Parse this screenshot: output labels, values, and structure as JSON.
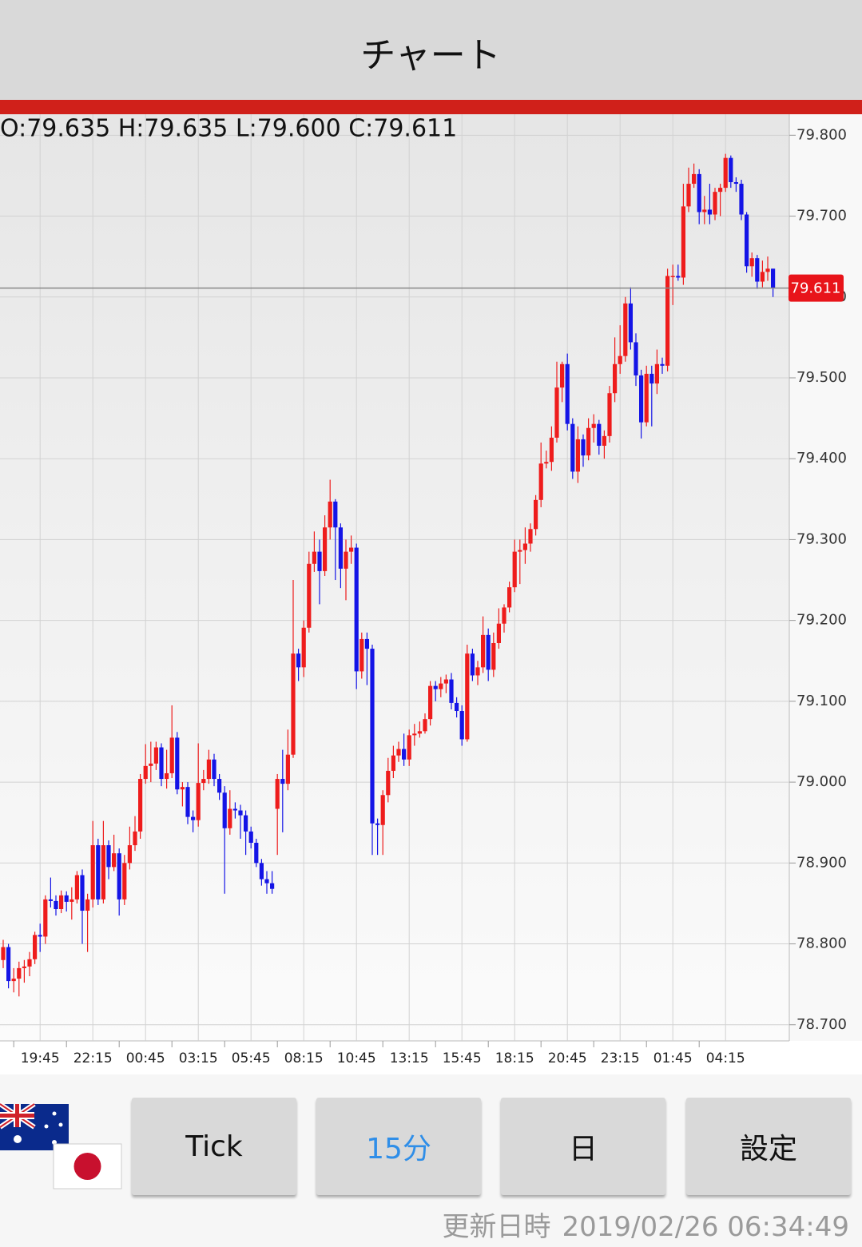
{
  "header": {
    "title": "チャート"
  },
  "chart_data": {
    "type": "candlestick",
    "ohlc_header": "O:79.635 H:79.635 L:79.600 C:79.611",
    "categories": [
      null,
      null,
      null,
      null,
      null,
      null,
      null,
      "19:45",
      null,
      null,
      null,
      null,
      null,
      null,
      null,
      null,
      null,
      "22:15",
      null,
      null,
      null,
      null,
      null,
      null,
      null,
      null,
      null,
      "00:45",
      null,
      null,
      null,
      null,
      null,
      null,
      null,
      null,
      null,
      "03:15",
      null,
      null,
      null,
      null,
      null,
      null,
      null,
      null,
      null,
      "05:45",
      null,
      null,
      null,
      null,
      null,
      null,
      null,
      null,
      null,
      "08:15",
      null,
      null,
      null,
      null,
      null,
      null,
      null,
      null,
      null,
      "10:45",
      null,
      null,
      null,
      null,
      null,
      null,
      null,
      null,
      null,
      "13:15",
      null,
      null,
      null,
      null,
      null,
      null,
      null,
      null,
      null,
      "15:45",
      null,
      null,
      null,
      null,
      null,
      null,
      null,
      null,
      null,
      "18:15",
      null,
      null,
      null,
      null,
      null,
      null,
      null,
      null,
      null,
      "20:45",
      null,
      null,
      null,
      null,
      null,
      null,
      null,
      null,
      null,
      "23:15",
      null,
      null,
      null,
      null,
      null,
      null,
      null,
      null,
      null,
      "01:45",
      null,
      null,
      null,
      null,
      null,
      null,
      null,
      null,
      null,
      "04:15",
      null,
      null,
      null,
      null,
      null,
      null,
      null,
      null,
      null
    ],
    "open": [
      78.78,
      78.796,
      78.754,
      78.757,
      78.77,
      78.772,
      78.781,
      78.811,
      78.809,
      78.855,
      78.853,
      78.843,
      78.86,
      78.852,
      78.855,
      78.885,
      78.841,
      78.855,
      78.922,
      78.855,
      78.922,
      78.895,
      78.912,
      78.855,
      78.9,
      78.922,
      78.939,
      79.004,
      79.02,
      79.023,
      79.043,
      79.004,
      79.011,
      79.055,
      78.991,
      78.994,
      78.957,
      78.953,
      78.999,
      79.004,
      79.028,
      79.004,
      78.987,
      78.943,
      78.967,
      78.965,
      78.959,
      78.939,
      78.925,
      78.9,
      78.88,
      78.875,
      78.967,
      79.004,
      78.998,
      79.034,
      79.159,
      79.142,
      79.191,
      79.27,
      79.285,
      79.261,
      79.315,
      79.347,
      79.315,
      79.264,
      79.285,
      79.29,
      79.137,
      79.177,
      79.165,
      78.949,
      78.947,
      78.984,
      79.014,
      79.033,
      79.041,
      79.028,
      79.058,
      79.06,
      79.063,
      79.078,
      79.119,
      79.115,
      79.122,
      79.127,
      79.098,
      79.088,
      79.053,
      79.159,
      79.132,
      79.142,
      79.182,
      79.139,
      79.172,
      79.196,
      79.216,
      79.241,
      79.285,
      79.287,
      79.295,
      79.313,
      79.349,
      79.394,
      79.396,
      79.426,
      79.488,
      79.517,
      79.443,
      79.384,
      79.424,
      79.404,
      79.438,
      79.443,
      79.416,
      79.428,
      79.481,
      79.517,
      79.527,
      79.592,
      79.544,
      79.503,
      79.445,
      79.505,
      79.493,
      79.517,
      79.515,
      79.626,
      79.626,
      79.624,
      79.712,
      79.74,
      79.752,
      79.705,
      79.708,
      79.702,
      79.73,
      79.735,
      79.772,
      79.742,
      79.74,
      79.702,
      79.638,
      79.648,
      79.619,
      79.631,
      79.635
    ],
    "high": [
      78.805,
      78.8,
      78.77,
      78.778,
      78.78,
      78.79,
      78.815,
      78.825,
      78.86,
      78.882,
      78.86,
      78.866,
      78.865,
      78.87,
      78.89,
      78.892,
      78.862,
      78.952,
      78.93,
      78.952,
      78.928,
      78.935,
      78.918,
      78.91,
      78.945,
      78.958,
      79.01,
      79.047,
      79.05,
      79.05,
      79.048,
      79.04,
      79.095,
      79.062,
      79.0,
      79.0,
      78.965,
      79.048,
      79.015,
      79.04,
      79.035,
      79.01,
      78.995,
      78.99,
      78.975,
      78.972,
      78.965,
      78.945,
      78.93,
      78.905,
      78.89,
      78.89,
      79.01,
      79.04,
      79.065,
      79.25,
      79.165,
      79.2,
      79.285,
      79.31,
      79.3,
      79.33,
      79.374,
      79.35,
      79.32,
      79.3,
      79.305,
      79.295,
      79.185,
      79.185,
      79.17,
      78.955,
      78.99,
      79.03,
      79.045,
      79.05,
      79.06,
      79.065,
      79.072,
      79.075,
      79.085,
      79.125,
      79.125,
      79.13,
      79.133,
      79.135,
      79.105,
      79.095,
      79.17,
      79.165,
      79.15,
      79.205,
      79.19,
      79.185,
      79.215,
      79.22,
      79.248,
      79.3,
      79.3,
      79.315,
      79.32,
      79.355,
      79.42,
      79.41,
      79.44,
      79.52,
      79.52,
      79.53,
      79.45,
      79.44,
      79.43,
      79.45,
      79.455,
      79.448,
      79.435,
      79.49,
      79.55,
      79.565,
      79.6,
      79.612,
      79.555,
      79.51,
      79.515,
      79.515,
      79.535,
      79.525,
      79.635,
      79.64,
      79.64,
      79.74,
      79.76,
      79.765,
      79.758,
      79.725,
      79.74,
      79.735,
      79.74,
      79.777,
      79.775,
      79.748,
      79.745,
      79.705,
      79.655,
      79.652,
      79.645,
      79.65,
      79.635
    ],
    "low": [
      78.77,
      78.745,
      78.74,
      78.735,
      78.752,
      78.76,
      78.775,
      78.79,
      78.8,
      78.845,
      78.835,
      78.838,
      78.84,
      78.83,
      78.85,
      78.8,
      78.79,
      78.845,
      78.848,
      78.85,
      78.88,
      78.89,
      78.835,
      78.848,
      78.892,
      78.915,
      78.93,
      78.998,
      79.0,
      79.015,
      78.995,
      78.992,
      79.005,
      78.985,
      78.97,
      78.948,
      78.938,
      78.945,
      78.99,
      78.998,
      78.995,
      78.978,
      78.862,
      78.935,
      78.955,
      78.93,
      78.91,
      78.918,
      78.895,
      78.872,
      78.862,
      78.862,
      78.91,
      78.938,
      78.99,
      79.03,
      79.125,
      79.13,
      79.185,
      79.26,
      79.22,
      79.255,
      79.3,
      79.25,
      79.24,
      79.225,
      79.27,
      79.115,
      79.128,
      79.12,
      78.91,
      78.91,
      78.91,
      78.975,
      79.005,
      79.025,
      79.02,
      79.02,
      79.045,
      79.055,
      79.06,
      79.07,
      79.1,
      79.105,
      79.11,
      79.09,
      79.08,
      79.045,
      79.05,
      79.125,
      79.12,
      79.135,
      79.125,
      79.13,
      79.165,
      79.185,
      79.21,
      79.235,
      79.245,
      79.27,
      79.285,
      79.305,
      79.34,
      79.388,
      79.385,
      79.42,
      79.47,
      79.435,
      79.375,
      79.37,
      79.39,
      79.398,
      79.42,
      79.405,
      79.4,
      79.42,
      79.47,
      79.505,
      79.52,
      79.535,
      79.49,
      79.425,
      79.44,
      79.44,
      79.48,
      79.505,
      79.508,
      79.59,
      79.62,
      79.615,
      79.705,
      79.735,
      79.69,
      79.69,
      79.69,
      79.695,
      79.7,
      79.73,
      79.735,
      79.73,
      79.695,
      79.63,
      79.625,
      79.61,
      79.612,
      79.62,
      79.6
    ],
    "close": [
      78.796,
      78.754,
      78.757,
      78.77,
      78.772,
      78.781,
      78.811,
      78.809,
      78.855,
      78.853,
      78.843,
      78.86,
      78.852,
      78.855,
      78.885,
      78.841,
      78.855,
      78.922,
      78.855,
      78.922,
      78.895,
      78.912,
      78.855,
      78.9,
      78.922,
      78.939,
      79.004,
      79.02,
      79.023,
      79.043,
      79.004,
      79.011,
      79.055,
      78.991,
      78.994,
      78.957,
      78.953,
      78.999,
      79.004,
      79.028,
      79.004,
      78.987,
      78.943,
      78.967,
      78.965,
      78.959,
      78.939,
      78.925,
      78.9,
      78.88,
      78.875,
      78.868,
      79.004,
      78.998,
      79.034,
      79.159,
      79.142,
      79.191,
      79.27,
      79.285,
      79.261,
      79.315,
      79.347,
      79.315,
      79.264,
      79.285,
      79.29,
      79.137,
      79.177,
      79.165,
      78.949,
      78.947,
      78.984,
      79.014,
      79.033,
      79.041,
      79.028,
      79.058,
      79.06,
      79.063,
      79.078,
      79.119,
      79.115,
      79.122,
      79.127,
      79.098,
      79.088,
      79.053,
      79.159,
      79.132,
      79.142,
      79.182,
      79.139,
      79.172,
      79.196,
      79.216,
      79.241,
      79.285,
      79.287,
      79.295,
      79.313,
      79.349,
      79.394,
      79.396,
      79.426,
      79.488,
      79.517,
      79.443,
      79.384,
      79.424,
      79.404,
      79.438,
      79.443,
      79.416,
      79.428,
      79.481,
      79.517,
      79.527,
      79.592,
      79.544,
      79.503,
      79.445,
      79.505,
      79.493,
      79.517,
      79.515,
      79.626,
      79.626,
      79.624,
      79.712,
      79.74,
      79.752,
      79.705,
      79.708,
      79.702,
      79.73,
      79.735,
      79.772,
      79.742,
      79.74,
      79.702,
      79.638,
      79.648,
      79.619,
      79.631,
      79.635,
      79.611
    ],
    "up_color": "#ee1c1c",
    "down_color": "#1414e6",
    "ylim": [
      78.68,
      79.826
    ],
    "yticks": [
      {
        "value": 78.7,
        "label": "78.700"
      },
      {
        "value": 78.8,
        "label": "78.800"
      },
      {
        "value": 78.9,
        "label": "78.900"
      },
      {
        "value": 79.0,
        "label": "79.000"
      },
      {
        "value": 79.1,
        "label": "79.100"
      },
      {
        "value": 79.2,
        "label": "79.200"
      },
      {
        "value": 79.3,
        "label": "79.300"
      },
      {
        "value": 79.4,
        "label": "79.400"
      },
      {
        "value": 79.5,
        "label": "79.500"
      },
      {
        "value": 79.6,
        "label": "79.600"
      },
      {
        "value": 79.7,
        "label": "79.700"
      },
      {
        "value": 79.8,
        "label": "79.800"
      }
    ],
    "last_price": 79.611,
    "last_price_color": "#e8141a",
    "grid": true
  },
  "controls": {
    "buttons": [
      "Tick",
      "15分",
      "日",
      "設定"
    ],
    "selected": 1
  },
  "footer": {
    "updated_label": "更新日時",
    "updated_at": "2019/02/26 06:34:49"
  }
}
